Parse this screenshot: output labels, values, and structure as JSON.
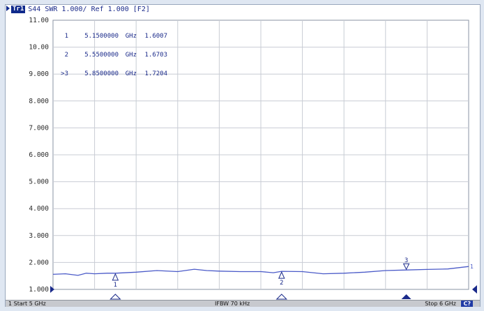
{
  "header": {
    "trace_tag": "Tr1",
    "text": "S44  SWR 1.000/ Ref 1.000 [F2]"
  },
  "marker_table": [
    {
      "id": "1",
      "freq": "5.1500000",
      "unit": "GHz",
      "value": "1.6007"
    },
    {
      "id": "2",
      "freq": "5.5500000",
      "unit": "GHz",
      "value": "1.6703"
    },
    {
      "id": ">3",
      "freq": "5.8500000",
      "unit": "GHz",
      "value": "1.7204"
    }
  ],
  "status": {
    "start": "1  Start 5 GHz",
    "ifbw": "IFBW 70 kHz",
    "stop": "Stop 6 GHz",
    "badge": "C?"
  },
  "colors": {
    "trace": "#4a5ac8",
    "grid": "#c8ccd4",
    "text": "#1a2a8a",
    "marker_fill": "#1a2a8a"
  },
  "chart_data": {
    "type": "line",
    "xlim": [
      5.0,
      6.0
    ],
    "ylim": [
      1.0,
      11.0
    ],
    "yticks": [
      "1.000",
      "2.000",
      "3.000",
      "4.000",
      "5.000",
      "6.000",
      "7.000",
      "8.000",
      "9.000",
      "10.00",
      "11.00"
    ],
    "x_divisions": 10,
    "grid": true,
    "series": [
      {
        "x": [
          5.0,
          5.03,
          5.06,
          5.08,
          5.1,
          5.13,
          5.15,
          5.2,
          5.25,
          5.3,
          5.34,
          5.37,
          5.4,
          5.45,
          5.5,
          5.53,
          5.55,
          5.6,
          5.65,
          5.7,
          5.75,
          5.8,
          5.85,
          5.9,
          5.95,
          6.0
        ],
        "y": [
          1.56,
          1.58,
          1.52,
          1.6,
          1.58,
          1.6,
          1.6,
          1.64,
          1.7,
          1.66,
          1.75,
          1.7,
          1.68,
          1.66,
          1.66,
          1.62,
          1.67,
          1.66,
          1.58,
          1.6,
          1.64,
          1.7,
          1.72,
          1.74,
          1.76,
          1.85
        ]
      }
    ],
    "markers": [
      {
        "id": "1",
        "x": 5.15,
        "y": 1.6007
      },
      {
        "id": "2",
        "x": 5.55,
        "y": 1.6703
      },
      {
        "id": "3",
        "x": 5.85,
        "y": 1.7204
      }
    ],
    "trace_end_label": "1"
  }
}
